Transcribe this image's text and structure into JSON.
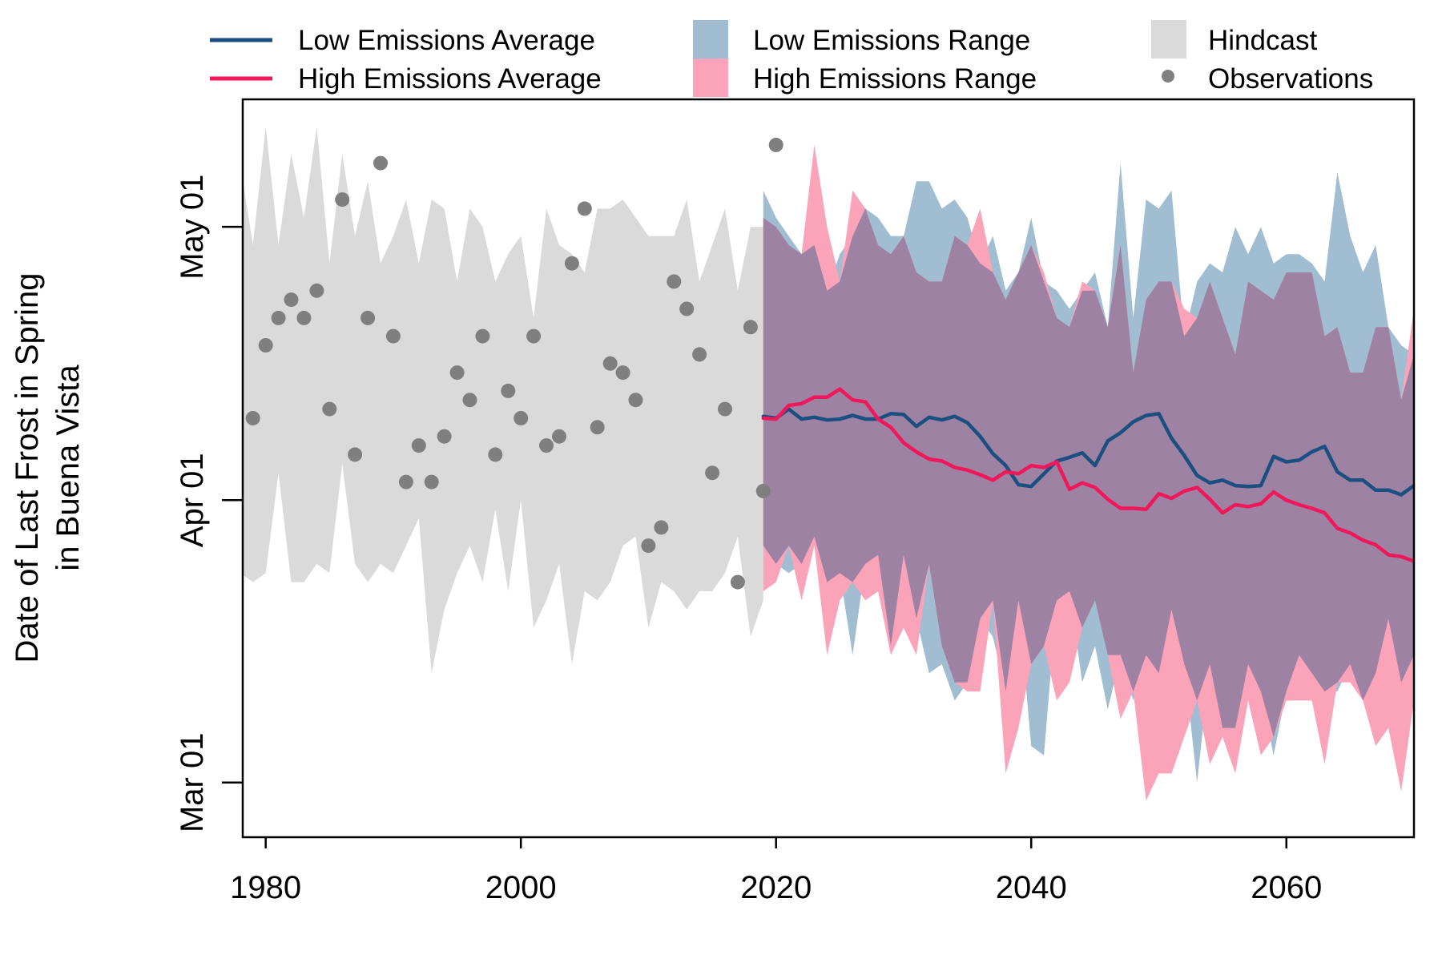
{
  "chart_data": {
    "type": "line",
    "title": "",
    "xlabel": "",
    "ylabel_lines": [
      "Date of Last Frost in Spring",
      "in Buena Vista"
    ],
    "x_ticks": [
      1980,
      2000,
      2020,
      2040,
      2060
    ],
    "xlim": [
      1978.2,
      2070
    ],
    "y_ticks": [
      {
        "label": "Mar 01",
        "day": 0
      },
      {
        "label": "Apr 01",
        "day": 31
      },
      {
        "label": "May 01",
        "day": 61
      }
    ],
    "ylim": [
      -6,
      75
    ],
    "y_unit": "days after Mar 01",
    "legend_position": "top",
    "legend": [
      {
        "label": "Low Emissions Average",
        "kind": "line",
        "color": "#1b4f80"
      },
      {
        "label": "High Emissions Average",
        "kind": "line",
        "color": "#f0185a"
      },
      {
        "label": "Low Emissions Range",
        "kind": "band",
        "color": "#a0bdd2"
      },
      {
        "label": "High Emissions Range",
        "kind": "band",
        "color": "#fba3b9"
      },
      {
        "label": "Hindcast",
        "kind": "band",
        "color": "#dadada"
      },
      {
        "label": "Observations",
        "kind": "point",
        "color": "#7f7f7f"
      }
    ],
    "hindcast": {
      "name": "Hindcast",
      "color": "#dadada",
      "x": [
        1978,
        1979,
        1980,
        1981,
        1982,
        1983,
        1984,
        1985,
        1986,
        1987,
        1988,
        1989,
        1990,
        1991,
        1992,
        1993,
        1994,
        1995,
        1996,
        1997,
        1998,
        1999,
        2000,
        2001,
        2002,
        2003,
        2004,
        2005,
        2006,
        2007,
        2008,
        2009,
        2010,
        2011,
        2012,
        2013,
        2014,
        2015,
        2016,
        2017,
        2018,
        2019
      ],
      "upper": [
        68,
        59,
        72,
        59,
        69,
        62,
        72,
        57,
        69,
        60,
        66,
        57,
        60,
        64,
        57,
        64,
        63,
        55,
        63,
        61,
        55,
        58,
        60,
        51,
        63,
        59,
        58,
        56,
        63,
        63,
        64,
        62,
        60,
        60,
        60,
        64,
        55,
        59,
        63,
        54,
        61,
        61
      ],
      "lower": [
        23,
        22,
        23,
        34,
        22,
        22,
        24,
        23,
        35,
        24,
        22,
        24,
        23,
        26,
        29,
        12,
        19,
        23,
        26,
        22,
        30,
        21,
        31,
        17,
        20,
        24,
        13,
        21,
        20,
        22,
        26,
        27,
        17,
        22,
        21,
        19,
        21,
        21,
        23,
        27,
        16,
        20
      ]
    },
    "observations": {
      "name": "Observations",
      "color": "#7f7f7f",
      "x": [
        1979,
        1980,
        1981,
        1982,
        1983,
        1984,
        1985,
        1986,
        1987,
        1988,
        1989,
        1990,
        1991,
        1992,
        1993,
        1994,
        1995,
        1996,
        1997,
        1998,
        1999,
        2000,
        2001,
        2002,
        2003,
        2004,
        2005,
        2006,
        2007,
        2008,
        2009,
        2010,
        2011,
        2012,
        2013,
        2014,
        2015,
        2016,
        2017,
        2018,
        2019,
        2020
      ],
      "y": [
        40,
        48,
        51,
        53,
        51,
        54,
        41,
        64,
        36,
        51,
        68,
        49,
        33,
        37,
        33,
        38,
        45,
        42,
        49,
        36,
        43,
        40,
        49,
        37,
        38,
        57,
        63,
        39,
        46,
        45,
        42,
        26,
        28,
        55,
        52,
        47,
        34,
        41,
        22,
        50,
        32,
        70
      ]
    },
    "low_emissions_range": {
      "name": "Low Emissions Range",
      "color": "#a0bdd2",
      "x": [
        2019,
        2020,
        2021,
        2022,
        2023,
        2024,
        2025,
        2026,
        2027,
        2028,
        2029,
        2030,
        2031,
        2032,
        2033,
        2034,
        2035,
        2036,
        2037,
        2038,
        2039,
        2040,
        2041,
        2042,
        2043,
        2044,
        2045,
        2046,
        2047,
        2048,
        2049,
        2050,
        2051,
        2052,
        2053,
        2054,
        2055,
        2056,
        2057,
        2058,
        2059,
        2060,
        2061,
        2062,
        2063,
        2064,
        2065,
        2066,
        2067,
        2068,
        2069,
        2070
      ],
      "upper": [
        65,
        62,
        60,
        58,
        59,
        54,
        58,
        60,
        63,
        62,
        60,
        60,
        66,
        66,
        63,
        64,
        62,
        57,
        60,
        54,
        56,
        62,
        55,
        54,
        52,
        54,
        56,
        50,
        68,
        51,
        64,
        63,
        65,
        49,
        55,
        57,
        56,
        61,
        58,
        61,
        57,
        58,
        58,
        57,
        55,
        67,
        60,
        56,
        59,
        50,
        48,
        47
      ],
      "lower": [
        26,
        24,
        23,
        24,
        27,
        22,
        23,
        14,
        24,
        25,
        15,
        25,
        18,
        12,
        13,
        9,
        11,
        18,
        16,
        10,
        20,
        4,
        3,
        20,
        21,
        11,
        15,
        8,
        14,
        9,
        14,
        12,
        19,
        13,
        0,
        13,
        6,
        6,
        13,
        10,
        3,
        10,
        14,
        12,
        10,
        10,
        13,
        9,
        12,
        18,
        11,
        14
      ]
    },
    "high_emissions_range": {
      "name": "High Emissions Range",
      "color": "#fba3b9",
      "x": [
        2019,
        2020,
        2021,
        2022,
        2023,
        2024,
        2025,
        2026,
        2027,
        2028,
        2029,
        2030,
        2031,
        2032,
        2033,
        2034,
        2035,
        2036,
        2037,
        2038,
        2039,
        2040,
        2041,
        2042,
        2043,
        2044,
        2045,
        2046,
        2047,
        2048,
        2049,
        2050,
        2051,
        2052,
        2053,
        2054,
        2055,
        2056,
        2057,
        2058,
        2059,
        2060,
        2061,
        2062,
        2063,
        2064,
        2065,
        2066,
        2067,
        2068,
        2069,
        2070
      ],
      "upper": [
        62,
        61,
        59,
        58,
        70,
        61,
        55,
        65,
        63,
        59,
        58,
        60,
        56,
        55,
        55,
        60,
        59,
        63,
        56,
        53,
        56,
        59,
        56,
        51,
        50,
        55,
        54,
        50,
        59,
        45,
        53,
        55,
        55,
        52,
        51,
        55,
        51,
        47,
        55,
        54,
        53,
        56,
        56,
        56,
        49,
        50,
        45,
        45,
        50,
        50,
        42,
        52
      ],
      "lower": [
        21,
        22,
        26,
        20,
        26,
        14,
        20,
        22,
        20,
        21,
        14,
        17,
        14,
        24,
        15,
        11,
        10,
        10,
        20,
        1,
        6,
        13,
        15,
        9,
        11,
        17,
        20,
        14,
        7,
        10,
        -2,
        1,
        1,
        5,
        9,
        2,
        5,
        1,
        9,
        3,
        5,
        9,
        9,
        9,
        2,
        11,
        11,
        9,
        4,
        6,
        -1,
        9
      ]
    },
    "series": [
      {
        "name": "Low Emissions Average",
        "color": "#1b4f80",
        "x": [
          2019,
          2020,
          2021,
          2022,
          2023,
          2024,
          2025,
          2026,
          2027,
          2028,
          2029,
          2030,
          2031,
          2032,
          2033,
          2034,
          2035,
          2036,
          2037,
          2038,
          2039,
          2040,
          2041,
          2042,
          2043,
          2044,
          2045,
          2046,
          2047,
          2048,
          2049,
          2050,
          2051,
          2052,
          2053,
          2054,
          2055,
          2056,
          2057,
          2058,
          2059,
          2060,
          2061,
          2062,
          2063,
          2064,
          2065,
          2066,
          2067,
          2068,
          2069,
          2070
        ],
        "y": [
          40.2,
          40.0,
          41.0,
          39.9,
          40.1,
          39.8,
          39.9,
          40.3,
          39.9,
          39.9,
          40.5,
          40.4,
          39.1,
          40.1,
          39.8,
          40.2,
          39.5,
          38.0,
          36.1,
          34.8,
          32.7,
          32.5,
          33.9,
          35.3,
          35.7,
          36.2,
          34.8,
          37.5,
          38.4,
          39.6,
          40.3,
          40.5,
          37.8,
          35.9,
          33.7,
          32.9,
          33.2,
          32.6,
          32.5,
          32.6,
          35.8,
          35.2,
          35.4,
          36.3,
          36.9,
          34.1,
          33.2,
          33.2,
          32.1,
          32.1,
          31.6,
          32.6
        ]
      },
      {
        "name": "High Emissions Average",
        "color": "#f0185a",
        "x": [
          2019,
          2020,
          2021,
          2022,
          2023,
          2024,
          2025,
          2026,
          2027,
          2028,
          2029,
          2030,
          2031,
          2032,
          2033,
          2034,
          2035,
          2036,
          2037,
          2038,
          2039,
          2040,
          2041,
          2042,
          2043,
          2044,
          2045,
          2046,
          2047,
          2048,
          2049,
          2050,
          2051,
          2052,
          2053,
          2054,
          2055,
          2056,
          2057,
          2058,
          2059,
          2060,
          2061,
          2062,
          2063,
          2064,
          2065,
          2066,
          2067,
          2068,
          2069,
          2070
        ],
        "y": [
          40.0,
          39.9,
          41.4,
          41.6,
          42.3,
          42.3,
          43.2,
          42.0,
          41.8,
          39.9,
          39.0,
          37.3,
          36.3,
          35.5,
          35.3,
          34.6,
          34.3,
          33.8,
          33.2,
          34.1,
          33.9,
          34.8,
          34.6,
          35.2,
          32.2,
          32.9,
          32.4,
          31.1,
          30.1,
          30.1,
          30.0,
          31.7,
          31.2,
          32.0,
          32.4,
          31.1,
          29.6,
          30.5,
          30.3,
          30.6,
          31.9,
          31.0,
          30.5,
          30.1,
          29.6,
          27.9,
          27.4,
          26.6,
          26.1,
          25.0,
          24.8,
          24.3
        ]
      }
    ]
  }
}
